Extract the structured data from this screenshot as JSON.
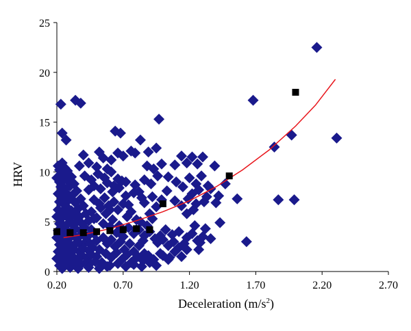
{
  "chart_data": {
    "type": "scatter",
    "title": "",
    "xlabel": "Deceleration (m/s",
    "xlabel_sup": "2",
    "xlabel_close": ")",
    "ylabel": "HRV",
    "xlim": [
      0.2,
      2.7
    ],
    "ylim": [
      0,
      25
    ],
    "xticks": [
      0.2,
      0.7,
      1.2,
      1.7,
      2.2,
      2.7
    ],
    "xtick_labels": [
      "0.20",
      "0.70",
      "1.20",
      "1.70",
      "2.20",
      "2.70"
    ],
    "yticks": [
      0,
      5,
      10,
      15,
      20,
      25
    ],
    "ytick_labels": [
      "0",
      "5",
      "10",
      "15",
      "20",
      "25"
    ],
    "grid": false,
    "legend": "none",
    "colors": {
      "points": "#1a1a8c",
      "means": "#000000",
      "trend": "#e8141a"
    },
    "series": [
      {
        "marker": "diamond",
        "points": [
          [
            0.21,
            10.6
          ],
          [
            0.22,
            10.2
          ],
          [
            0.23,
            9.8
          ],
          [
            0.24,
            10.9
          ],
          [
            0.26,
            10.4
          ],
          [
            0.28,
            10.1
          ],
          [
            0.2,
            9.4
          ],
          [
            0.22,
            9.0
          ],
          [
            0.25,
            9.2
          ],
          [
            0.27,
            9.6
          ],
          [
            0.29,
            9.0
          ],
          [
            0.31,
            9.5
          ],
          [
            0.23,
            8.5
          ],
          [
            0.26,
            8.3
          ],
          [
            0.3,
            8.6
          ],
          [
            0.33,
            8.8
          ],
          [
            0.21,
            7.8
          ],
          [
            0.24,
            7.6
          ],
          [
            0.27,
            7.9
          ],
          [
            0.32,
            7.7
          ],
          [
            0.35,
            8.1
          ],
          [
            0.22,
            7.0
          ],
          [
            0.25,
            6.8
          ],
          [
            0.29,
            7.2
          ],
          [
            0.34,
            6.9
          ],
          [
            0.38,
            7.3
          ],
          [
            0.21,
            6.2
          ],
          [
            0.24,
            6.0
          ],
          [
            0.28,
            6.4
          ],
          [
            0.31,
            6.1
          ],
          [
            0.36,
            6.3
          ],
          [
            0.4,
            6.6
          ],
          [
            0.2,
            5.5
          ],
          [
            0.23,
            5.3
          ],
          [
            0.27,
            5.6
          ],
          [
            0.3,
            5.4
          ],
          [
            0.33,
            5.7
          ],
          [
            0.37,
            5.5
          ],
          [
            0.42,
            5.8
          ],
          [
            0.22,
            4.8
          ],
          [
            0.25,
            4.6
          ],
          [
            0.29,
            4.9
          ],
          [
            0.32,
            4.7
          ],
          [
            0.35,
            5.0
          ],
          [
            0.39,
            4.8
          ],
          [
            0.44,
            5.1
          ],
          [
            0.21,
            4.1
          ],
          [
            0.24,
            3.9
          ],
          [
            0.27,
            4.2
          ],
          [
            0.31,
            4.0
          ],
          [
            0.34,
            4.3
          ],
          [
            0.38,
            4.1
          ],
          [
            0.41,
            4.4
          ],
          [
            0.46,
            4.2
          ],
          [
            0.2,
            3.4
          ],
          [
            0.23,
            3.2
          ],
          [
            0.26,
            3.5
          ],
          [
            0.29,
            3.3
          ],
          [
            0.33,
            3.6
          ],
          [
            0.36,
            3.4
          ],
          [
            0.4,
            3.7
          ],
          [
            0.43,
            3.5
          ],
          [
            0.48,
            3.8
          ],
          [
            0.22,
            2.7
          ],
          [
            0.25,
            2.5
          ],
          [
            0.28,
            2.8
          ],
          [
            0.31,
            2.6
          ],
          [
            0.35,
            2.9
          ],
          [
            0.38,
            2.7
          ],
          [
            0.42,
            3.0
          ],
          [
            0.45,
            2.8
          ],
          [
            0.5,
            3.1
          ],
          [
            0.21,
            2.0
          ],
          [
            0.24,
            1.8
          ],
          [
            0.27,
            2.1
          ],
          [
            0.3,
            1.9
          ],
          [
            0.33,
            2.2
          ],
          [
            0.37,
            2.0
          ],
          [
            0.4,
            2.3
          ],
          [
            0.44,
            2.1
          ],
          [
            0.47,
            2.4
          ],
          [
            0.52,
            2.2
          ],
          [
            0.2,
            1.3
          ],
          [
            0.23,
            1.1
          ],
          [
            0.26,
            1.4
          ],
          [
            0.29,
            1.2
          ],
          [
            0.32,
            1.5
          ],
          [
            0.36,
            1.3
          ],
          [
            0.39,
            1.6
          ],
          [
            0.43,
            1.4
          ],
          [
            0.46,
            1.7
          ],
          [
            0.5,
            1.5
          ],
          [
            0.22,
            0.6
          ],
          [
            0.25,
            0.5
          ],
          [
            0.28,
            0.7
          ],
          [
            0.31,
            0.6
          ],
          [
            0.35,
            0.8
          ],
          [
            0.38,
            0.7
          ],
          [
            0.42,
            0.9
          ],
          [
            0.45,
            0.8
          ],
          [
            0.49,
            1.0
          ],
          [
            0.54,
            0.9
          ],
          [
            0.24,
            0.3
          ],
          [
            0.3,
            0.4
          ],
          [
            0.36,
            0.3
          ],
          [
            0.44,
            0.4
          ],
          [
            0.52,
            0.3
          ],
          [
            0.58,
            0.5
          ],
          [
            0.46,
            6.0
          ],
          [
            0.5,
            5.4
          ],
          [
            0.53,
            6.4
          ],
          [
            0.55,
            4.8
          ],
          [
            0.57,
            5.8
          ],
          [
            0.6,
            4.5
          ],
          [
            0.62,
            5.2
          ],
          [
            0.65,
            3.9
          ],
          [
            0.67,
            4.6
          ],
          [
            0.7,
            3.5
          ],
          [
            0.48,
            7.2
          ],
          [
            0.52,
            6.8
          ],
          [
            0.56,
            7.4
          ],
          [
            0.59,
            6.6
          ],
          [
            0.63,
            7.0
          ],
          [
            0.66,
            6.2
          ],
          [
            0.7,
            6.8
          ],
          [
            0.73,
            5.5
          ],
          [
            0.76,
            6.0
          ],
          [
            0.8,
            5.2
          ],
          [
            0.44,
            8.2
          ],
          [
            0.48,
            8.6
          ],
          [
            0.53,
            8.3
          ],
          [
            0.58,
            8.9
          ],
          [
            0.62,
            8.0
          ],
          [
            0.67,
            8.4
          ],
          [
            0.72,
            7.6
          ],
          [
            0.78,
            7.9
          ],
          [
            0.84,
            7.4
          ],
          [
            0.41,
            9.6
          ],
          [
            0.46,
            9.2
          ],
          [
            0.51,
            9.8
          ],
          [
            0.56,
            9.4
          ],
          [
            0.61,
            10.0
          ],
          [
            0.66,
            9.3
          ],
          [
            0.72,
            9.0
          ],
          [
            0.79,
            8.7
          ],
          [
            0.37,
            10.6
          ],
          [
            0.44,
            10.9
          ],
          [
            0.5,
            10.5
          ],
          [
            0.55,
            11.4
          ],
          [
            0.61,
            11.2
          ],
          [
            0.66,
            11.9
          ],
          [
            0.7,
            11.6
          ],
          [
            0.76,
            12.1
          ],
          [
            0.58,
            10.3
          ],
          [
            0.55,
            3.4
          ],
          [
            0.58,
            2.8
          ],
          [
            0.61,
            3.2
          ],
          [
            0.64,
            2.5
          ],
          [
            0.68,
            3.0
          ],
          [
            0.71,
            2.2
          ],
          [
            0.75,
            2.8
          ],
          [
            0.78,
            2.0
          ],
          [
            0.82,
            2.6
          ],
          [
            0.86,
            1.8
          ],
          [
            0.57,
            1.8
          ],
          [
            0.61,
            1.4
          ],
          [
            0.65,
            1.9
          ],
          [
            0.69,
            1.2
          ],
          [
            0.73,
            1.7
          ],
          [
            0.77,
            1.0
          ],
          [
            0.81,
            1.5
          ],
          [
            0.85,
            1.1
          ],
          [
            0.89,
            1.6
          ],
          [
            0.93,
            1.2
          ],
          [
            0.6,
            0.6
          ],
          [
            0.66,
            0.8
          ],
          [
            0.72,
            0.5
          ],
          [
            0.78,
            0.7
          ],
          [
            0.84,
            0.5
          ],
          [
            0.9,
            0.9
          ],
          [
            0.95,
            0.6
          ],
          [
            0.74,
            4.4
          ],
          [
            0.78,
            3.8
          ],
          [
            0.82,
            4.2
          ],
          [
            0.86,
            3.6
          ],
          [
            0.9,
            4.0
          ],
          [
            0.94,
            3.3
          ],
          [
            0.98,
            3.6
          ],
          [
            0.83,
            5.0
          ],
          [
            0.88,
            4.6
          ],
          [
            0.92,
            5.3
          ],
          [
            0.96,
            2.9
          ],
          [
            1.0,
            3.2
          ],
          [
            1.04,
            2.6
          ],
          [
            1.08,
            3.0
          ],
          [
            1.12,
            2.4
          ],
          [
            1.16,
            2.8
          ],
          [
            1.0,
            1.6
          ],
          [
            1.04,
            1.2
          ],
          [
            1.09,
            2.0
          ],
          [
            1.14,
            1.5
          ],
          [
            1.18,
            2.2
          ],
          [
            1.02,
            4.2
          ],
          [
            1.07,
            3.7
          ],
          [
            1.12,
            4.0
          ],
          [
            1.18,
            3.4
          ],
          [
            1.22,
            3.8
          ],
          [
            1.26,
            3.1
          ],
          [
            1.3,
            3.5
          ],
          [
            1.24,
            4.6
          ],
          [
            1.28,
            2.9
          ],
          [
            0.9,
            5.8
          ],
          [
            0.95,
            6.5
          ],
          [
            0.99,
            7.2
          ],
          [
            1.03,
            8.1
          ],
          [
            0.86,
            6.9
          ],
          [
            0.92,
            7.5
          ],
          [
            0.82,
            8.0
          ],
          [
            0.86,
            9.2
          ],
          [
            0.91,
            8.8
          ],
          [
            0.96,
            9.6
          ],
          [
            0.88,
            10.6
          ],
          [
            0.93,
            10.3
          ],
          [
            0.99,
            10.8
          ],
          [
            1.04,
            9.5
          ],
          [
            1.09,
            10.7
          ],
          [
            1.14,
            11.6
          ],
          [
            1.18,
            10.9
          ],
          [
            1.22,
            11.5
          ],
          [
            1.26,
            10.8
          ],
          [
            1.3,
            11.5
          ],
          [
            1.1,
            9.0
          ],
          [
            1.15,
            8.5
          ],
          [
            1.2,
            9.4
          ],
          [
            1.25,
            8.8
          ],
          [
            1.29,
            9.6
          ],
          [
            1.34,
            8.6
          ],
          [
            1.39,
            10.6
          ],
          [
            1.22,
            7.8
          ],
          [
            1.27,
            8.2
          ],
          [
            1.33,
            7.5
          ],
          [
            1.36,
            8.3
          ],
          [
            1.42,
            7.6
          ],
          [
            1.47,
            8.8
          ],
          [
            1.4,
            6.9
          ],
          [
            1.09,
            7.1
          ],
          [
            1.14,
            6.6
          ],
          [
            1.19,
            7.3
          ],
          [
            1.25,
            6.8
          ],
          [
            1.31,
            7.0
          ],
          [
            1.18,
            5.8
          ],
          [
            1.23,
            6.2
          ],
          [
            0.79,
            11.9
          ],
          [
            0.83,
            13.2
          ],
          [
            0.64,
            14.1
          ],
          [
            0.68,
            13.9
          ],
          [
            0.97,
            15.3
          ],
          [
            0.95,
            12.4
          ],
          [
            0.89,
            12.0
          ],
          [
            0.23,
            16.8
          ],
          [
            0.24,
            13.9
          ],
          [
            0.27,
            13.2
          ],
          [
            0.34,
            17.2
          ],
          [
            0.38,
            16.9
          ],
          [
            1.56,
            7.3
          ],
          [
            1.63,
            3.0
          ],
          [
            1.68,
            17.2
          ],
          [
            1.84,
            12.5
          ],
          [
            1.87,
            7.2
          ],
          [
            1.97,
            13.7
          ],
          [
            1.99,
            7.2
          ],
          [
            2.16,
            22.5
          ],
          [
            2.31,
            13.4
          ],
          [
            1.36,
            3.3
          ],
          [
            1.32,
            4.3
          ],
          [
            1.27,
            2.2
          ],
          [
            1.43,
            4.9
          ],
          [
            0.98,
            1.8
          ],
          [
            1.05,
            1.4
          ],
          [
            0.76,
            0.9
          ],
          [
            0.4,
            11.7
          ],
          [
            0.52,
            12.0
          ],
          [
            0.35,
            2.9
          ],
          [
            0.48,
            5.3
          ],
          [
            0.6,
            6.2
          ],
          [
            0.63,
            8.6
          ],
          [
            0.69,
            9.1
          ],
          [
            0.74,
            6.7
          ],
          [
            0.8,
            4.2
          ],
          [
            0.85,
            3.1
          ],
          [
            0.54,
            0.7
          ],
          [
            0.34,
            1.2
          ]
        ]
      },
      {
        "marker": "square",
        "points": [
          [
            0.2,
            4.0
          ],
          [
            0.3,
            3.9
          ],
          [
            0.4,
            3.9
          ],
          [
            0.5,
            4.0
          ],
          [
            0.6,
            4.1
          ],
          [
            0.7,
            4.2
          ],
          [
            0.8,
            4.3
          ],
          [
            0.9,
            4.2
          ],
          [
            1.0,
            6.8
          ],
          [
            1.5,
            9.6
          ],
          [
            2.0,
            18.0
          ]
        ]
      },
      {
        "marker": "line",
        "points": [
          [
            0.25,
            3.4
          ],
          [
            0.4,
            3.7
          ],
          [
            0.6,
            4.3
          ],
          [
            0.8,
            5.1
          ],
          [
            1.0,
            6.0
          ],
          [
            1.2,
            7.1
          ],
          [
            1.4,
            8.5
          ],
          [
            1.6,
            10.2
          ],
          [
            1.8,
            12.2
          ],
          [
            2.0,
            14.6
          ],
          [
            2.15,
            16.7
          ],
          [
            2.3,
            19.3
          ]
        ]
      }
    ]
  }
}
